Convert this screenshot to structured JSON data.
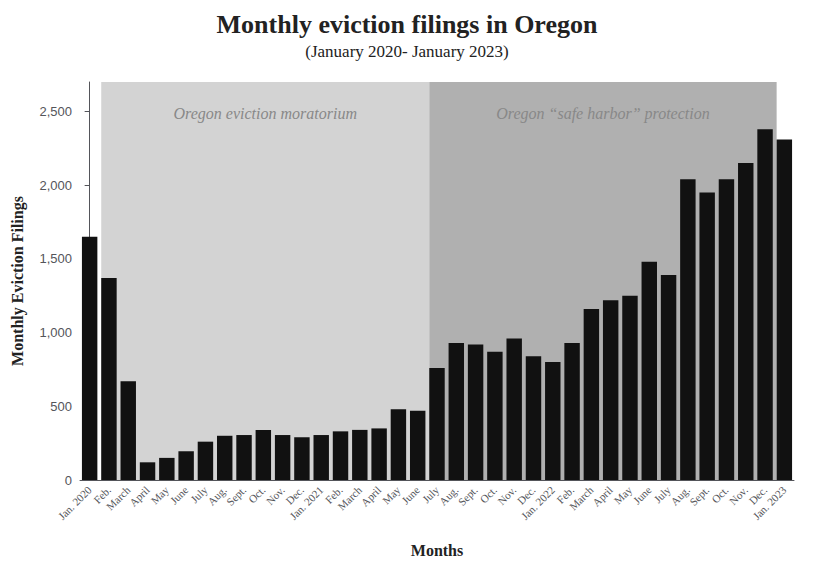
{
  "chart_data": {
    "type": "bar",
    "title": "Monthly eviction filings in Oregon",
    "subtitle": "(January 2020- January 2023)",
    "xlabel": "Months",
    "ylabel": "Monthly Eviction Filings",
    "categories": [
      "Jan. 2020",
      "Feb.",
      "March",
      "April",
      "May",
      "June",
      "July",
      "Aug.",
      "Sept.",
      "Oct.",
      "Nov.",
      "Dec.",
      "Jan. 2021",
      "Feb.",
      "March",
      "April",
      "May",
      "June",
      "July",
      "Aug.",
      "Sept.",
      "Oct.",
      "Nov.",
      "Dec.",
      "Jan. 2022",
      "Feb.",
      "March",
      "April",
      "May",
      "June",
      "July",
      "Aug.",
      "Sept.",
      "Oct.",
      "Nov.",
      "Dec.",
      "Jan. 2023"
    ],
    "values": [
      1650,
      1370,
      670,
      120,
      150,
      195,
      260,
      300,
      305,
      340,
      305,
      290,
      305,
      330,
      340,
      350,
      480,
      470,
      760,
      930,
      920,
      870,
      960,
      840,
      800,
      930,
      1160,
      1220,
      1250,
      1480,
      1390,
      2040,
      1950,
      2040,
      2150,
      2380,
      2310
    ],
    "color": "#111111",
    "ylim": [
      0,
      2700
    ],
    "yticks": [
      0,
      500,
      {
        "value": 1000,
        "label": "1,000"
      },
      {
        "value": 1500,
        "label": "1,500"
      },
      {
        "value": 2000,
        "label": "2,000"
      },
      {
        "value": 2500,
        "label": "2,500"
      }
    ],
    "grid": false,
    "annotations": [
      {
        "text": "Oregon eviction moratorium",
        "start": 1,
        "end": 18,
        "color": "#d3d3d3"
      },
      {
        "text": "Oregon “safe harbor” protection",
        "start": 18,
        "end": 36,
        "color": "#b0b0b0"
      }
    ]
  }
}
